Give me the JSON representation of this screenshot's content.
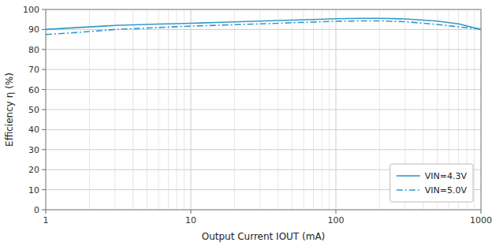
{
  "chart_data": {
    "type": "line",
    "x": [
      1,
      1.5,
      2,
      2.5,
      3,
      4,
      5,
      6,
      7,
      8,
      10,
      15,
      20,
      30,
      40,
      50,
      70,
      100,
      150,
      200,
      300,
      500,
      700,
      1000
    ],
    "series": [
      {
        "name": "VIN=4.3V",
        "color": "#3399CC",
        "line_style": "solid",
        "values": [
          90.0,
          90.8,
          91.3,
          91.7,
          92.0,
          92.3,
          92.5,
          92.7,
          92.8,
          92.9,
          93.1,
          93.5,
          93.8,
          94.2,
          94.5,
          94.7,
          95.0,
          95.4,
          95.6,
          95.6,
          95.3,
          94.2,
          92.8,
          90.0
        ]
      },
      {
        "name": "VIN=5.0V",
        "color": "#3399CC",
        "line_style": "dashdot",
        "values": [
          87.5,
          88.3,
          89.0,
          89.5,
          90.0,
          90.4,
          90.7,
          91.0,
          91.2,
          91.4,
          91.7,
          92.1,
          92.4,
          92.8,
          93.1,
          93.4,
          93.7,
          94.1,
          94.3,
          94.3,
          93.9,
          92.5,
          91.3,
          90.2
        ]
      }
    ],
    "x_label": "Output Current IOUT (mA)",
    "y_label": "Efficiency η (%)",
    "log": "x",
    "xlim": [
      1,
      1000
    ],
    "xticks": [
      1,
      10,
      100,
      1000
    ],
    "ylim": [
      0,
      100
    ],
    "yticks": [
      0,
      10,
      20,
      30,
      40,
      50,
      60,
      70,
      80,
      90,
      100
    ],
    "grid": true,
    "legend": "lower right"
  }
}
